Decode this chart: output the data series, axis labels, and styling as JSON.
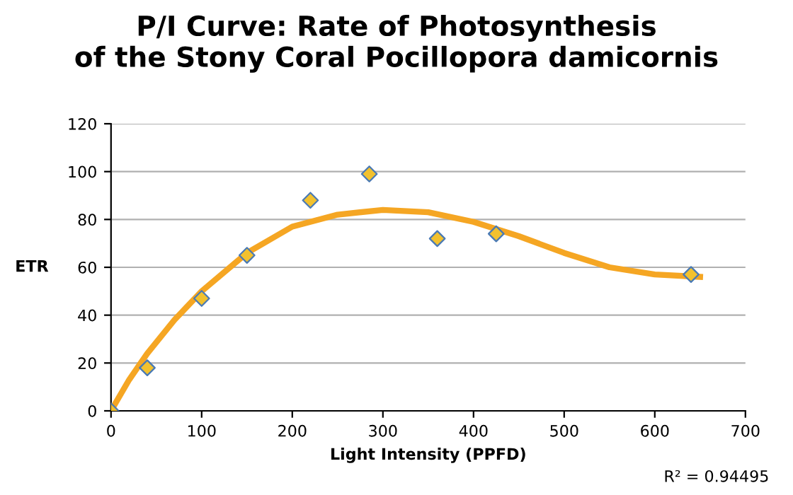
{
  "chart_data": {
    "type": "scatter",
    "title": "P/I Curve: Rate of Photosynthesis\nof the Stony Coral Pocillopora damicornis",
    "xlabel": "Light Intensity (PPFD)",
    "ylabel": "ETR",
    "series": [
      {
        "color": "#f2c12e",
        "marker": "diamond",
        "x": [
          0,
          40,
          100,
          150,
          220,
          285,
          360,
          425,
          640
        ],
        "values": [
          0,
          18,
          47,
          65,
          88,
          99,
          72,
          74,
          57
        ]
      },
      {
        "type": "line",
        "color": "#f5a623",
        "marker": "none",
        "x": [
          0,
          20,
          40,
          70,
          100,
          150,
          200,
          250,
          300,
          350,
          400,
          450,
          500,
          550,
          600,
          650
        ],
        "values": [
          0,
          13,
          24,
          38,
          50,
          66,
          77,
          82,
          84,
          83,
          79,
          73,
          66,
          60,
          57,
          56
        ]
      }
    ],
    "xlim": [
      0,
      700
    ],
    "xticks": [
      0,
      100,
      200,
      300,
      400,
      500,
      600,
      700
    ],
    "ylim": [
      0,
      120
    ],
    "yticks": [
      0,
      20,
      40,
      60,
      80,
      100,
      120
    ],
    "grid": "y",
    "annotations": [
      "R² = 0.94495"
    ]
  }
}
